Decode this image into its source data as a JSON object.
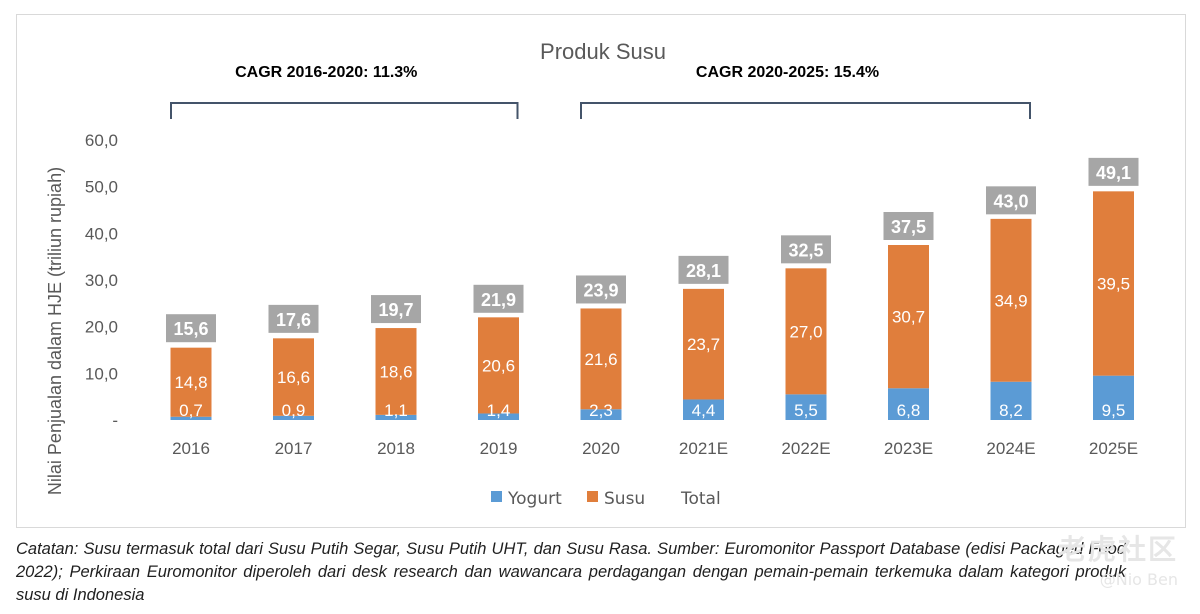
{
  "chart_data": {
    "type": "bar",
    "stacked": true,
    "title": "Produk Susu",
    "ylabel": "Nilai Penjualan dalam HJE (triliun rupiah)",
    "xlabel": "",
    "categories": [
      "2016",
      "2017",
      "2018",
      "2019",
      "2020",
      "2021E",
      "2022E",
      "2023E",
      "2024E",
      "2025E"
    ],
    "series": [
      {
        "name": "Yogurt",
        "color": "#5b9bd5",
        "values": [
          0.7,
          0.9,
          1.1,
          1.4,
          2.3,
          4.4,
          5.5,
          6.8,
          8.2,
          9.5
        ],
        "labels": [
          "0,7",
          "0,9",
          "1,1",
          "1,4",
          "2,3",
          "4,4",
          "5,5",
          "6,8",
          "8,2",
          "9,5"
        ]
      },
      {
        "name": "Susu",
        "color": "#e07e3c",
        "values": [
          14.8,
          16.6,
          18.6,
          20.6,
          21.6,
          23.7,
          27.0,
          30.7,
          34.9,
          39.5
        ],
        "labels": [
          "14,8",
          "16,6",
          "18,6",
          "20,6",
          "21,6",
          "23,7",
          "27,0",
          "30,7",
          "34,9",
          "39,5"
        ]
      },
      {
        "name": "Total",
        "color": "#a6a6a6",
        "values": [
          15.6,
          17.6,
          19.7,
          21.9,
          23.9,
          28.1,
          32.5,
          37.5,
          43.0,
          49.1
        ],
        "labels": [
          "15,6",
          "17,6",
          "19,7",
          "21,9",
          "23,9",
          "28,1",
          "32,5",
          "37,5",
          "43,0",
          "49,1"
        ]
      }
    ],
    "ylim": [
      0,
      60
    ],
    "yticks": [
      0,
      10,
      20,
      30,
      40,
      50,
      60
    ],
    "ytick_labels": [
      "-",
      "10,0",
      "20,0",
      "30,0",
      "40,0",
      "50,0",
      "60,0"
    ],
    "grid": false,
    "legend": "bottom",
    "annotations": [
      {
        "text": "CAGR 2016-2020: 11.3%",
        "from": "2016",
        "to": "2019"
      },
      {
        "text": "CAGR 2020-2025: 15.4%",
        "from": "2020",
        "to": "2024E"
      }
    ]
  },
  "caption": "Catatan: Susu termasuk total dari Susu Putih Segar, Susu Putih UHT, dan Susu Rasa. Sumber: Euromonitor Passport Database (edisi Packaged Food 2022); Perkiraan Euromonitor diperoleh dari desk research dan wawancara perdagangan dengan pemain-pemain terkemuka dalam kategori produk susu di Indonesia",
  "watermark": {
    "logo": "老虎社区",
    "user": "@Nio Ben"
  }
}
